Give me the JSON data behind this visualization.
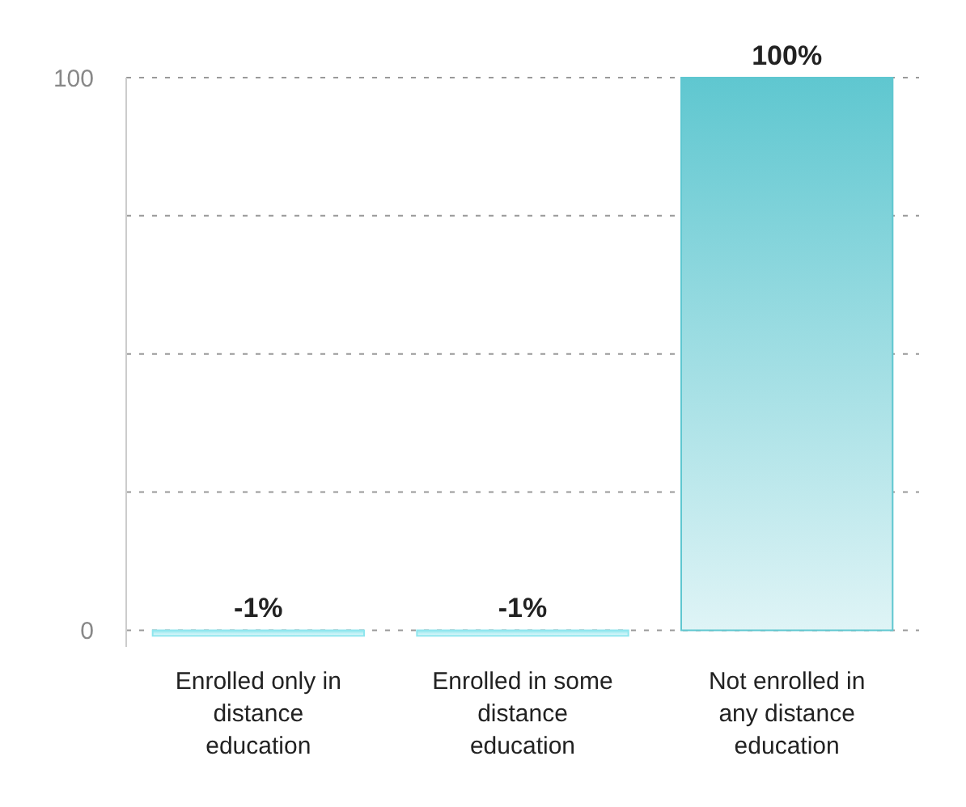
{
  "chart_data": {
    "type": "bar",
    "categories": [
      "Enrolled only in distance education",
      "Enrolled in some distance education",
      "Not enrolled in any distance education"
    ],
    "values": [
      -1,
      -1,
      100
    ],
    "value_labels": [
      "-1%",
      "-1%",
      "100%"
    ],
    "colors": [
      "#8fe6ee",
      "#8fe6ee",
      "#5fc7d0"
    ],
    "ylim": [
      -3,
      100
    ],
    "yticks": [
      0,
      {
        "value": 25,
        "label": null
      },
      {
        "value": 50,
        "label": null
      },
      {
        "value": 75,
        "label": null
      },
      100
    ],
    "grid": "y",
    "line_style": "dashed"
  }
}
